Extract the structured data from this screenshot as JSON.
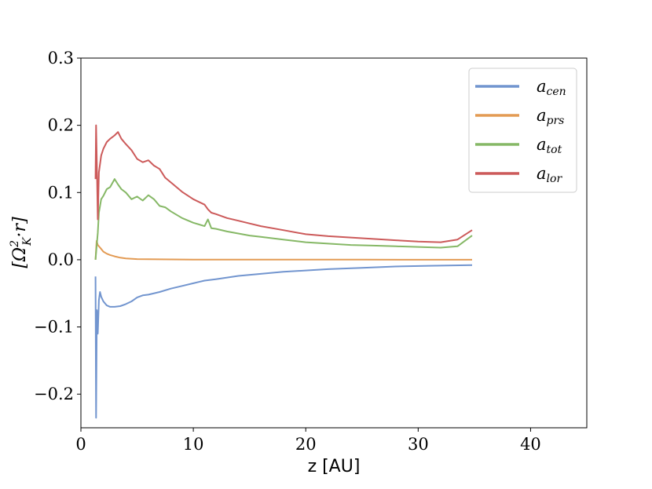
{
  "chart_data": {
    "type": "line",
    "xlabel": "z [AU]",
    "ylabel": "[Ω²ₖ·r]",
    "ylabel_parts": {
      "base": "[Ω",
      "sup": "2",
      "sub": "K",
      "tail": "·r]"
    },
    "xlim": [
      0,
      45
    ],
    "ylim": [
      -0.25,
      0.3
    ],
    "xticks": [
      0,
      10,
      20,
      30,
      40
    ],
    "yticks": [
      -0.2,
      -0.1,
      0.0,
      0.1,
      0.2,
      0.3
    ],
    "ytick_labels": [
      "−0.2",
      "−0.1",
      "0.0",
      "0.1",
      "0.2",
      "0.3"
    ],
    "grid": false,
    "legend_position": "top-right",
    "series": [
      {
        "name": "a_cen",
        "label_base": "a",
        "label_sub": "cen",
        "color": "#7295cf",
        "x": [
          1.3,
          1.35,
          1.42,
          1.5,
          1.6,
          1.7,
          1.8,
          2.0,
          2.3,
          2.6,
          3.0,
          3.5,
          4.0,
          4.5,
          5.0,
          5.5,
          6.0,
          7.0,
          8.0,
          9.0,
          10.0,
          11.0,
          12.0,
          14.0,
          16.0,
          18.0,
          20.0,
          22.0,
          25.0,
          28.0,
          31.0,
          34.8
        ],
        "y": [
          -0.025,
          -0.235,
          -0.075,
          -0.11,
          -0.06,
          -0.048,
          -0.055,
          -0.062,
          -0.068,
          -0.07,
          -0.07,
          -0.069,
          -0.066,
          -0.062,
          -0.056,
          -0.053,
          -0.052,
          -0.048,
          -0.043,
          -0.039,
          -0.035,
          -0.031,
          -0.029,
          -0.024,
          -0.021,
          -0.018,
          -0.016,
          -0.014,
          -0.012,
          -0.01,
          -0.009,
          -0.008
        ]
      },
      {
        "name": "a_prs",
        "label_base": "a",
        "label_sub": "prs",
        "color": "#e39b54",
        "x": [
          1.3,
          1.4,
          1.5,
          1.6,
          1.8,
          2.0,
          2.3,
          2.6,
          3.0,
          3.5,
          4.0,
          5.0,
          6.0,
          8.0,
          10.0,
          15.0,
          20.0,
          25.0,
          30.0,
          34.8
        ],
        "y": [
          0.0,
          0.028,
          0.022,
          0.02,
          0.016,
          0.012,
          0.009,
          0.007,
          0.005,
          0.003,
          0.002,
          0.001,
          0.0008,
          0.0005,
          0.0003,
          0.0002,
          0.0001,
          0.0001,
          0.0,
          0.0
        ]
      },
      {
        "name": "a_tot",
        "label_base": "a",
        "label_sub": "tot",
        "color": "#86b866",
        "x": [
          1.3,
          1.4,
          1.5,
          1.6,
          1.8,
          2.0,
          2.3,
          2.6,
          3.0,
          3.3,
          3.6,
          4.0,
          4.5,
          5.0,
          5.5,
          6.0,
          6.5,
          7.0,
          7.5,
          8.0,
          9.0,
          10.0,
          11.0,
          11.3,
          11.6,
          12.0,
          13.0,
          14.0,
          15.0,
          16.0,
          18.0,
          20.0,
          22.0,
          24.0,
          26.0,
          28.0,
          30.0,
          32.0,
          33.5,
          34.8
        ],
        "y": [
          0.0,
          0.02,
          0.04,
          0.07,
          0.09,
          0.095,
          0.105,
          0.108,
          0.12,
          0.112,
          0.105,
          0.1,
          0.09,
          0.094,
          0.088,
          0.096,
          0.09,
          0.08,
          0.078,
          0.072,
          0.062,
          0.055,
          0.05,
          0.06,
          0.047,
          0.046,
          0.042,
          0.039,
          0.036,
          0.034,
          0.03,
          0.026,
          0.024,
          0.022,
          0.021,
          0.02,
          0.019,
          0.018,
          0.02,
          0.036
        ]
      },
      {
        "name": "a_lor",
        "label_base": "a",
        "label_sub": "lor",
        "color": "#cc5a5a",
        "x": [
          1.3,
          1.35,
          1.4,
          1.5,
          1.6,
          1.8,
          2.0,
          2.3,
          2.6,
          3.0,
          3.3,
          3.6,
          4.0,
          4.5,
          5.0,
          5.5,
          6.0,
          6.5,
          7.0,
          7.5,
          8.0,
          9.0,
          10.0,
          11.0,
          11.3,
          11.6,
          12.0,
          13.0,
          14.0,
          15.0,
          16.0,
          18.0,
          20.0,
          22.0,
          24.0,
          26.0,
          28.0,
          30.0,
          32.0,
          33.5,
          34.8
        ],
        "y": [
          0.12,
          0.2,
          0.16,
          0.06,
          0.13,
          0.155,
          0.165,
          0.175,
          0.18,
          0.185,
          0.19,
          0.18,
          0.172,
          0.163,
          0.15,
          0.145,
          0.148,
          0.14,
          0.135,
          0.122,
          0.115,
          0.101,
          0.09,
          0.082,
          0.075,
          0.07,
          0.068,
          0.062,
          0.058,
          0.054,
          0.05,
          0.044,
          0.038,
          0.035,
          0.033,
          0.031,
          0.029,
          0.027,
          0.026,
          0.03,
          0.044
        ]
      }
    ]
  }
}
